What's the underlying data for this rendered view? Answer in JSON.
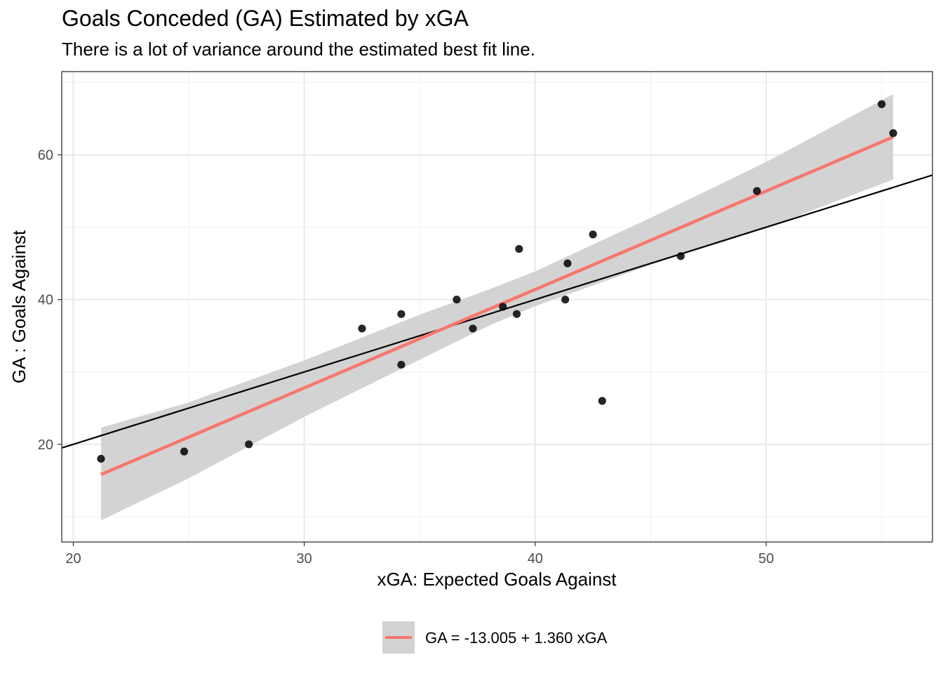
{
  "colors": {
    "points": "#000000",
    "fit_line": "#F8766D",
    "ci_band": "#d3d3d3",
    "reference_line": "#000000",
    "grid_major": "#ebebeb",
    "grid_minor": "#f3f3f3",
    "tick_label": "#4d4d4d"
  },
  "chart_data": {
    "type": "scatter",
    "title": "Goals Conceded (GA) Estimated by xGA",
    "subtitle": "There is a lot of variance around the estimated best fit line.",
    "xlabel": "xGA: Expected Goals Against",
    "ylabel": "GA : Goals Against",
    "xlim": [
      19.5,
      57.2
    ],
    "ylim": [
      6.5,
      71.5
    ],
    "x_ticks": [
      20,
      30,
      40,
      50
    ],
    "y_ticks": [
      20,
      40,
      60
    ],
    "grid": true,
    "points": [
      {
        "x": 21.2,
        "y": 18
      },
      {
        "x": 24.8,
        "y": 19
      },
      {
        "x": 27.6,
        "y": 20
      },
      {
        "x": 32.5,
        "y": 36
      },
      {
        "x": 34.2,
        "y": 38
      },
      {
        "x": 34.2,
        "y": 31
      },
      {
        "x": 36.6,
        "y": 40
      },
      {
        "x": 37.3,
        "y": 36
      },
      {
        "x": 38.6,
        "y": 39
      },
      {
        "x": 39.2,
        "y": 38
      },
      {
        "x": 39.3,
        "y": 47
      },
      {
        "x": 41.3,
        "y": 40
      },
      {
        "x": 41.4,
        "y": 45
      },
      {
        "x": 42.5,
        "y": 49
      },
      {
        "x": 42.9,
        "y": 26
      },
      {
        "x": 46.3,
        "y": 46
      },
      {
        "x": 49.6,
        "y": 55
      },
      {
        "x": 55.0,
        "y": 67
      },
      {
        "x": 55.5,
        "y": 63
      }
    ],
    "fit_line": {
      "intercept": -13.005,
      "slope": 1.36,
      "x_range": [
        21.2,
        55.5
      ]
    },
    "reference_line": {
      "intercept": 0,
      "slope": 1
    },
    "confidence_band": [
      {
        "x": 21.2,
        "lower": 9.5,
        "upper": 22.3
      },
      {
        "x": 25,
        "lower": 15.3,
        "upper": 25.8
      },
      {
        "x": 30,
        "lower": 23.8,
        "upper": 31.6
      },
      {
        "x": 35,
        "lower": 31.7,
        "upper": 37.9
      },
      {
        "x": 38,
        "lower": 36.4,
        "upper": 41.4
      },
      {
        "x": 40,
        "lower": 39.1,
        "upper": 43.9
      },
      {
        "x": 45,
        "lower": 44.8,
        "upper": 51.3
      },
      {
        "x": 50,
        "lower": 49.9,
        "upper": 59.0
      },
      {
        "x": 55.5,
        "lower": 56.6,
        "upper": 68.4
      }
    ],
    "legend": {
      "position": "bottom",
      "entries": [
        {
          "label": "GA = -13.005 + 1.360 xGA"
        }
      ]
    }
  }
}
